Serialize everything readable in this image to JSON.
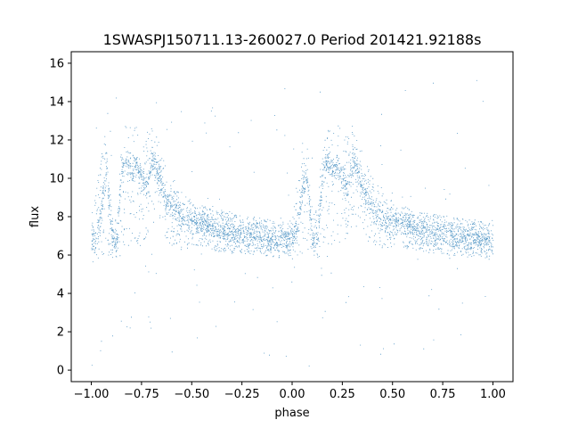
{
  "chart_data": {
    "type": "scatter",
    "title": "1SWASPJ150711.13-260027.0 Period 201421.92188s",
    "xlabel": "phase",
    "ylabel": "flux",
    "xlim": [
      -1.1,
      1.1
    ],
    "ylim": [
      -0.6,
      16.6
    ],
    "xticks": [
      -1.0,
      -0.75,
      -0.5,
      -0.25,
      0.0,
      0.25,
      0.5,
      0.75,
      1.0
    ],
    "xtick_labels": [
      "−1.00",
      "−0.75",
      "−0.50",
      "−0.25",
      "0.00",
      "0.25",
      "0.50",
      "0.75",
      "1.00"
    ],
    "yticks": [
      0,
      2,
      4,
      6,
      8,
      10,
      12,
      14,
      16
    ],
    "ytick_labels": [
      "0",
      "2",
      "4",
      "6",
      "8",
      "10",
      "12",
      "14",
      "16"
    ],
    "grid": false,
    "legend": false,
    "point_color": "#1f77b4",
    "series": [
      {
        "phase": [
          -1.0,
          -0.975,
          -0.95,
          -0.925,
          -0.9,
          -0.875,
          -0.85,
          -0.825,
          -0.8,
          -0.775,
          -0.75,
          -0.725,
          -0.7,
          -0.675,
          -0.65,
          -0.625,
          -0.6,
          -0.575,
          -0.55,
          -0.525,
          -0.5,
          -0.475,
          -0.45,
          -0.425,
          -0.4,
          -0.375,
          -0.35,
          -0.325,
          -0.3,
          -0.275,
          -0.25,
          -0.225,
          -0.2,
          -0.175,
          -0.15,
          -0.125,
          -0.1,
          -0.075,
          -0.05,
          -0.025,
          0.0,
          0.025,
          0.05,
          0.075,
          0.1,
          0.125,
          0.15,
          0.175,
          0.2,
          0.225,
          0.25,
          0.275,
          0.3,
          0.325,
          0.35,
          0.375,
          0.4,
          0.425,
          0.45,
          0.475,
          0.5,
          0.525,
          0.55,
          0.575,
          0.6,
          0.625,
          0.65,
          0.675,
          0.7,
          0.725,
          0.75,
          0.775,
          0.8,
          0.825,
          0.85,
          0.875,
          0.9,
          0.925,
          0.95,
          0.975,
          1.0
        ],
        "flux_typical": [
          6.7,
          6.8,
          8.5,
          10.5,
          6.9,
          6.6,
          10.5,
          11.0,
          10.2,
          10.8,
          10.0,
          9.5,
          11.0,
          10.3,
          9.8,
          8.6,
          8.7,
          8.3,
          7.9,
          7.7,
          7.8,
          7.6,
          7.7,
          7.5,
          7.4,
          7.3,
          7.3,
          7.2,
          7.2,
          7.1,
          7.1,
          7.0,
          7.0,
          7.0,
          6.9,
          6.9,
          6.9,
          6.8,
          6.8,
          6.8,
          6.8,
          7.5,
          9.5,
          10.0,
          6.8,
          6.7,
          10.2,
          10.8,
          10.5,
          10.6,
          10.0,
          9.6,
          11.0,
          10.4,
          9.7,
          8.8,
          8.6,
          8.2,
          7.9,
          7.7,
          7.8,
          7.6,
          7.6,
          7.5,
          7.4,
          7.3,
          7.3,
          7.2,
          7.2,
          7.1,
          7.1,
          7.1,
          7.0,
          7.0,
          6.9,
          6.9,
          6.9,
          6.8,
          6.8,
          6.8,
          6.7
        ],
        "flux_max": [
          8.5,
          9.5,
          12.0,
          12.5,
          8.0,
          8.0,
          12.5,
          13.0,
          12.5,
          12.8,
          12.0,
          12.0,
          13.0,
          12.5,
          11.5,
          10.5,
          10.2,
          9.8,
          9.5,
          9.0,
          8.8,
          8.6,
          8.6,
          8.5,
          8.4,
          8.3,
          8.3,
          8.2,
          8.2,
          8.1,
          8.1,
          8.0,
          8.0,
          8.0,
          7.9,
          7.9,
          7.9,
          7.8,
          7.8,
          7.8,
          8.2,
          10.0,
          12.0,
          12.2,
          8.0,
          8.5,
          12.5,
          13.0,
          12.8,
          13.0,
          12.5,
          12.3,
          13.0,
          12.5,
          11.5,
          10.8,
          10.3,
          9.8,
          9.5,
          9.0,
          8.8,
          8.6,
          8.6,
          8.5,
          8.4,
          8.3,
          8.3,
          8.2,
          8.2,
          8.1,
          8.1,
          8.1,
          8.0,
          8.0,
          7.9,
          7.9,
          7.9,
          7.8,
          7.8,
          7.8,
          8.0
        ],
        "flux_min": [
          5.6,
          5.7,
          6.0,
          6.0,
          5.8,
          5.8,
          6.0,
          6.5,
          6.5,
          6.5,
          6.5,
          7.0,
          7.5,
          7.5,
          7.5,
          6.5,
          6.5,
          6.5,
          6.2,
          6.2,
          6.5,
          6.5,
          6.4,
          6.3,
          6.3,
          6.2,
          6.2,
          6.2,
          6.1,
          6.1,
          6.1,
          6.0,
          6.0,
          6.0,
          6.0,
          5.9,
          5.9,
          5.9,
          5.8,
          5.8,
          5.8,
          5.8,
          6.0,
          6.0,
          5.8,
          5.8,
          6.0,
          6.5,
          6.5,
          6.5,
          6.5,
          7.0,
          7.5,
          7.5,
          7.5,
          6.5,
          6.5,
          6.5,
          6.2,
          6.2,
          6.5,
          6.5,
          6.4,
          6.3,
          6.3,
          6.2,
          6.2,
          6.2,
          6.1,
          6.1,
          6.1,
          6.0,
          6.0,
          6.0,
          6.0,
          5.9,
          5.9,
          5.9,
          5.8,
          5.8,
          5.8
        ]
      }
    ]
  }
}
